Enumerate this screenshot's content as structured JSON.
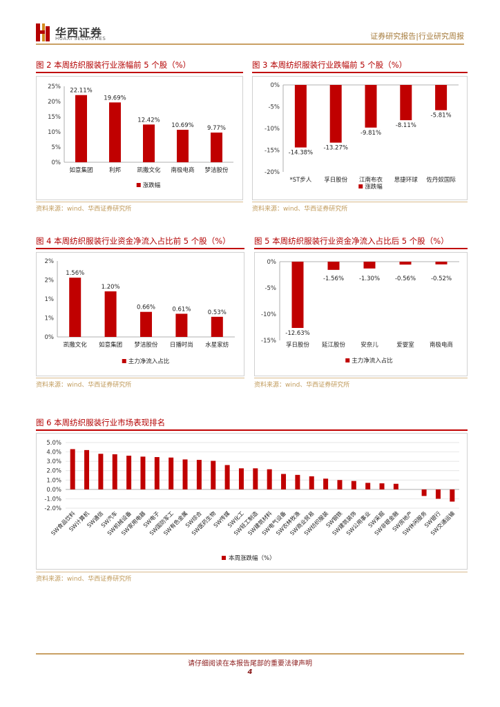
{
  "header": {
    "logo_cn": "华西证券",
    "logo_en": "HUAXI SECURITIES",
    "report_type": "证券研究报告|行业研究周报"
  },
  "figures": [
    {
      "title": "图 2 本周纺织服装行业涨幅前 5 个股（%）",
      "source": "资料来源：wind、华西证券研究所"
    },
    {
      "title": "图 3 本周纺织服装行业跌幅前 5 个股（%）",
      "source": "资料来源：wind、华西证券研究所"
    },
    {
      "title": "图 4 本周纺织服装行业资金净流入占比前 5 个股（%）",
      "source": "资料来源：wind、华西证券研究所"
    },
    {
      "title": "图 5 本周纺织服装行业资金净流入占比后 5 个股（%）",
      "source": "资料来源：wind、华西证券研究所"
    },
    {
      "title": "图 6 本周纺织服装行业市场表现排名",
      "source": "资料来源：wind、华西证券研究所"
    }
  ],
  "chart_data": [
    {
      "type": "bar",
      "categories": [
        "如意集团",
        "利邦",
        "凯撒文化",
        "南极电商",
        "梦洁股份"
      ],
      "series": [
        {
          "name": "涨跌幅",
          "values": [
            22.11,
            19.69,
            12.42,
            10.69,
            9.77
          ]
        }
      ],
      "labels": [
        "22.11%",
        "19.69%",
        "12.42%",
        "10.69%",
        "9.77%"
      ],
      "ylim": [
        0,
        25
      ],
      "yticks": [
        "0%",
        "5%",
        "10%",
        "15%",
        "20%",
        "25%"
      ],
      "color": "#c00000",
      "legend": "bottom"
    },
    {
      "type": "bar",
      "categories": [
        "*ST步人",
        "孚日股份",
        "江南布衣",
        "思捷环球",
        "佐丹奴国际"
      ],
      "series": [
        {
          "name": "涨跌幅",
          "values": [
            -14.38,
            -13.27,
            -9.81,
            -8.11,
            -5.81
          ]
        }
      ],
      "labels": [
        "-14.38%",
        "-13.27%",
        "-9.81%",
        "-8.11%",
        "-5.81%"
      ],
      "ylim": [
        -20,
        0
      ],
      "yticks": [
        "-20%",
        "-15%",
        "-10%",
        "-5%",
        "0%"
      ],
      "color": "#c00000",
      "legend": "bottom"
    },
    {
      "type": "bar",
      "categories": [
        "凯撒文化",
        "如意集团",
        "梦洁股份",
        "日播时尚",
        "水星家纺"
      ],
      "series": [
        {
          "name": "主力净流入占比",
          "values": [
            1.56,
            1.2,
            0.66,
            0.61,
            0.53
          ]
        }
      ],
      "labels": [
        "1.56%",
        "1.20%",
        "0.66%",
        "0.61%",
        "0.53%"
      ],
      "ylim": [
        0,
        2
      ],
      "yticks": [
        "0%",
        "1%",
        "1%",
        "2%",
        "2%"
      ],
      "color": "#c00000",
      "legend": "bottom"
    },
    {
      "type": "bar",
      "categories": [
        "孚日股份",
        "延江股份",
        "安奈儿",
        "爱婴室",
        "南极电商"
      ],
      "series": [
        {
          "name": "主力净流入占比",
          "values": [
            -12.63,
            -1.56,
            -1.3,
            -0.56,
            -0.52
          ]
        }
      ],
      "labels": [
        "-12.63%",
        "-1.56%",
        "-1.30%",
        "-0.56%",
        "-0.52%"
      ],
      "ylim": [
        -15,
        0
      ],
      "yticks": [
        "-15%",
        "-10%",
        "-5%",
        "0%"
      ],
      "color": "#c00000",
      "legend": "bottom"
    },
    {
      "type": "bar",
      "categories": [
        "SW食品饮料",
        "SW计算机",
        "SW通信",
        "SW汽车",
        "SW机械设备",
        "SW家用电器",
        "SW电子",
        "SW国防军工",
        "SW有色金属",
        "SW综合",
        "SW医药生物",
        "SW传媒",
        "SW化工",
        "SW轻工制造",
        "SW建筑材料",
        "SW电气设备",
        "SW农林牧渔",
        "SW商业贸易",
        "SW纺织服装",
        "SW钢铁",
        "SW建筑装饰",
        "SW公用事业",
        "SW采掘",
        "SW非银金融",
        "SW房地产",
        "SW休闲服务",
        "SW银行",
        "SW交通运输"
      ],
      "series": [
        {
          "name": "本周涨跌幅（%）",
          "values": [
            4.3,
            4.2,
            3.8,
            3.75,
            3.6,
            3.5,
            3.45,
            3.4,
            3.2,
            3.15,
            3.05,
            2.6,
            2.25,
            2.25,
            2.15,
            1.65,
            1.55,
            1.4,
            1.15,
            1.0,
            0.9,
            0.7,
            0.65,
            0.6,
            0.0,
            -0.7,
            -1.0,
            -1.3
          ]
        }
      ],
      "ylim": [
        -2,
        5
      ],
      "yticks": [
        "-2.0%",
        "-1.0%",
        "0.0%",
        "1.0%",
        "2.0%",
        "3.0%",
        "4.0%",
        "5.0%"
      ],
      "color": "#c00000",
      "legend": "bottom",
      "grid": true
    }
  ],
  "footer": {
    "disclaimer": "请仔细阅读在本报告尾部的重要法律声明",
    "page": "4"
  }
}
